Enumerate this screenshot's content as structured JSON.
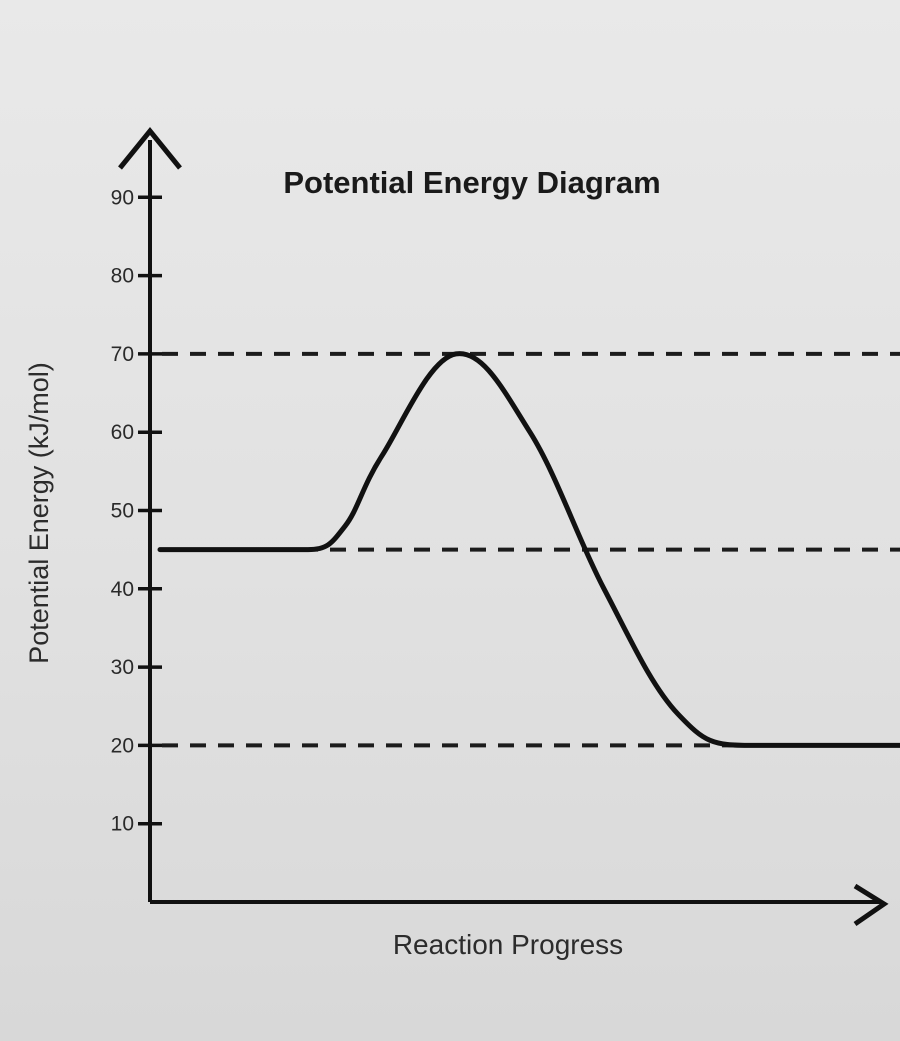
{
  "chart_data": {
    "type": "line",
    "title": "Potential Energy Diagram",
    "xlabel": "Reaction Progress",
    "ylabel": "Potential Energy (kJ/mol)",
    "ylim": [
      0,
      95
    ],
    "y_ticks": [
      10,
      20,
      30,
      40,
      50,
      60,
      70,
      80,
      90
    ],
    "reference_lines": [
      70,
      45,
      20
    ],
    "grid": false,
    "legend": "none",
    "series": [
      {
        "x": [
          0,
          10,
          20,
          25,
          30,
          40,
          50,
          60,
          70,
          80,
          100
        ],
        "y": [
          45,
          45,
          45,
          48,
          57,
          70,
          60,
          40,
          24,
          20,
          20
        ]
      }
    ],
    "colors": {
      "curve": "#111111",
      "axis": "#111111",
      "dashes": "#1c1c1c"
    }
  }
}
